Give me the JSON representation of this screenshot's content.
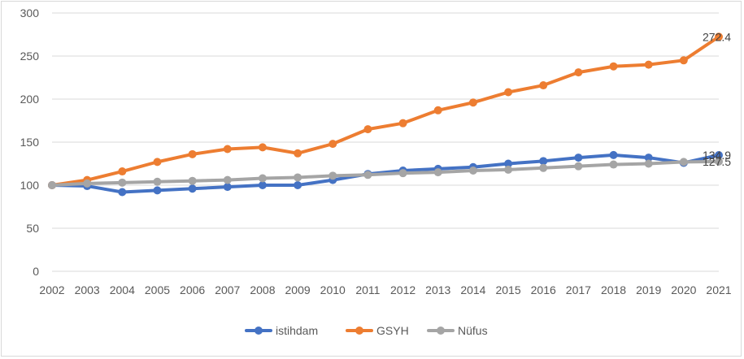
{
  "chart_data": {
    "type": "line",
    "title": "",
    "xlabel": "",
    "ylabel": "",
    "ylim": [
      0,
      300
    ],
    "yticks": [
      0,
      50,
      100,
      150,
      200,
      250,
      300
    ],
    "grid": true,
    "legend_position": "bottom",
    "x": [
      "2002",
      "2003",
      "2004",
      "2005",
      "2006",
      "2007",
      "2008",
      "2009",
      "2010",
      "2011",
      "2012",
      "2013",
      "2014",
      "2015",
      "2016",
      "2017",
      "2018",
      "2019",
      "2020",
      "2021"
    ],
    "series": [
      {
        "name": "istihdam",
        "color": "#4472c4",
        "values": [
          100,
          99,
          92,
          94,
          96,
          98,
          100,
          100,
          106,
          113,
          117,
          119,
          121,
          125,
          128,
          132,
          135,
          132,
          126,
          134.9
        ],
        "end_label": "134.9"
      },
      {
        "name": "GSYH",
        "color": "#ed7d31",
        "values": [
          100,
          106,
          116,
          127,
          136,
          142,
          144,
          137,
          148,
          165,
          172,
          187,
          196,
          208,
          216,
          231,
          238,
          240,
          245,
          272.4
        ],
        "end_label": "272.4"
      },
      {
        "name": "Nüfus",
        "color": "#a5a5a5",
        "values": [
          100,
          102,
          103,
          104,
          105,
          106,
          108,
          109,
          111,
          112,
          114,
          115,
          117,
          118,
          120,
          122,
          124,
          125,
          127,
          127.5
        ],
        "end_label": "127.5"
      }
    ]
  }
}
